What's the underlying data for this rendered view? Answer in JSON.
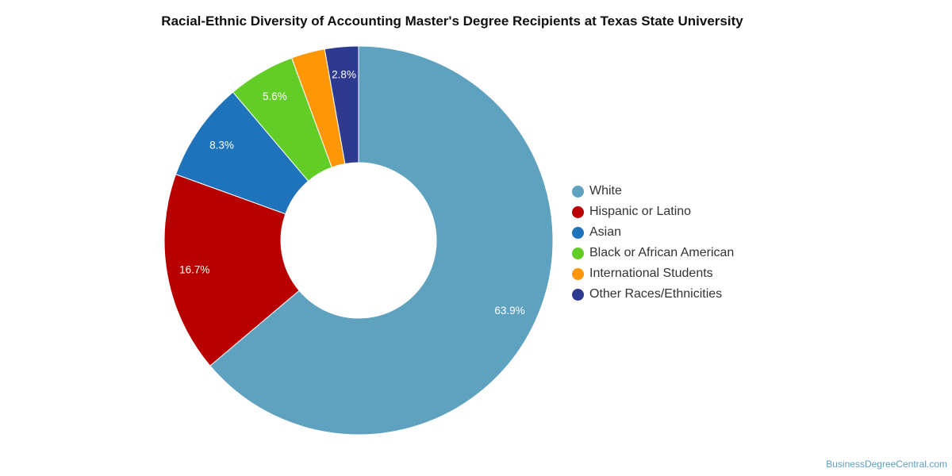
{
  "chart_data": {
    "type": "pie",
    "title": "Racial-Ethnic Diversity of Accounting Master's Degree Recipients at Texas State University",
    "categories": [
      "White",
      "Hispanic or Latino",
      "Asian",
      "Black or African American",
      "International Students",
      "Other Races/Ethnicities"
    ],
    "values": [
      63.9,
      16.7,
      8.3,
      5.6,
      2.8,
      2.8
    ],
    "data_labels": [
      "63.9%",
      "16.7%",
      "8.3%",
      "5.6%",
      "",
      "2.8%"
    ],
    "colors": [
      "#5ea2bf",
      "#b80000",
      "#1f73bb",
      "#62cd27",
      "#ff9605",
      "#2e3a8f"
    ],
    "legend_position": "right",
    "donut": true
  },
  "watermark": "BusinessDegreeCentral.com"
}
